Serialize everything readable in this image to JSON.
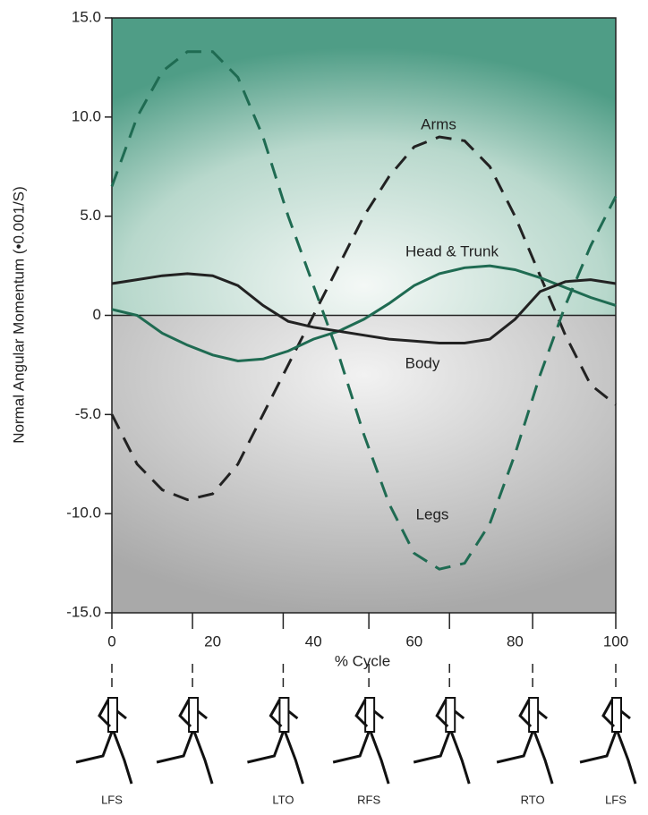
{
  "chart_data": {
    "type": "line",
    "ylabel": "Normal Angular Momentum (•0.001/S)",
    "xlabel": "% Cycle",
    "x": [
      0,
      5,
      10,
      15,
      20,
      25,
      30,
      35,
      40,
      45,
      50,
      55,
      60,
      65,
      70,
      75,
      80,
      85,
      90,
      95,
      100
    ],
    "xlim": [
      0,
      100
    ],
    "xticks": [
      0,
      20,
      40,
      60,
      80,
      100
    ],
    "ylim": [
      -15,
      15
    ],
    "yticks": [
      {
        "value": 15,
        "label": "15.0"
      },
      {
        "value": 10,
        "label": "10.0"
      },
      {
        "value": 5,
        "label": "5.0"
      },
      0,
      {
        "value": -5,
        "label": "-5.0"
      },
      {
        "value": -10,
        "label": "-10.0"
      },
      {
        "value": -15,
        "label": "-15.0"
      }
    ],
    "series": [
      {
        "name": "Arms",
        "color": "#222222",
        "dashed": true,
        "values": [
          -5,
          -7.5,
          -8.8,
          -9.3,
          -9,
          -7.5,
          -5,
          -2.5,
          0,
          2.5,
          5,
          7,
          8.5,
          9,
          8.8,
          7.5,
          5,
          2,
          -1,
          -3.5,
          -4.5
        ]
      },
      {
        "name": "Head & Trunk",
        "color": "#1f6b52",
        "dashed": false,
        "values": [
          0.3,
          0,
          -0.9,
          -1.5,
          -2,
          -2.3,
          -2.2,
          -1.8,
          -1.2,
          -0.8,
          -0.2,
          0.6,
          1.5,
          2.1,
          2.4,
          2.5,
          2.3,
          1.9,
          1.4,
          0.9,
          0.5
        ]
      },
      {
        "name": "Body",
        "color": "#222222",
        "dashed": false,
        "values": [
          1.6,
          1.8,
          2,
          2.1,
          2,
          1.5,
          0.5,
          -0.3,
          -0.6,
          -0.8,
          -1,
          -1.2,
          -1.3,
          -1.4,
          -1.4,
          -1.2,
          -0.2,
          1.2,
          1.7,
          1.8,
          1.6
        ]
      },
      {
        "name": "Legs",
        "color": "#1f6b52",
        "dashed": true,
        "values": [
          6.5,
          10,
          12.3,
          13.3,
          13.3,
          12,
          9,
          5,
          1.5,
          -2,
          -6,
          -9.5,
          -12,
          -12.8,
          -12.5,
          -10.5,
          -7,
          -3,
          0.5,
          3.5,
          6
        ]
      }
    ],
    "events": {
      "x": [
        0,
        16,
        34,
        51,
        67,
        83.5,
        100
      ],
      "labels": [
        "LFS",
        null,
        "LTO",
        "RFS",
        null,
        "RTO",
        "LFS"
      ]
    }
  }
}
